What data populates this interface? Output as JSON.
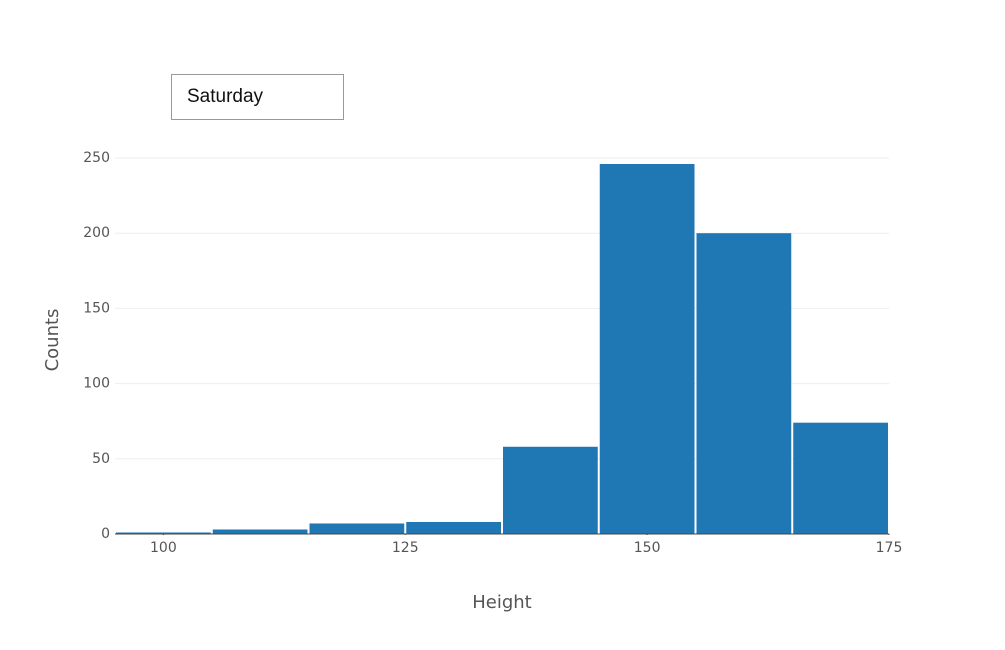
{
  "dropdown": {
    "selected": "Saturday"
  },
  "chart_data": {
    "type": "histogram",
    "xlabel": "Height",
    "ylabel": "Counts",
    "bins": [
      95,
      105,
      115,
      125,
      135,
      145,
      155,
      165,
      175
    ],
    "values": [
      1,
      3,
      7,
      8,
      58,
      246,
      200,
      74
    ],
    "color": "#1f77b4",
    "xlim": [
      95,
      175
    ],
    "xticks": [
      100,
      125,
      150,
      175
    ],
    "ylim": [
      0,
      250
    ],
    "yticks": [
      0,
      50,
      100,
      150,
      200,
      250
    ],
    "grid": true
  }
}
